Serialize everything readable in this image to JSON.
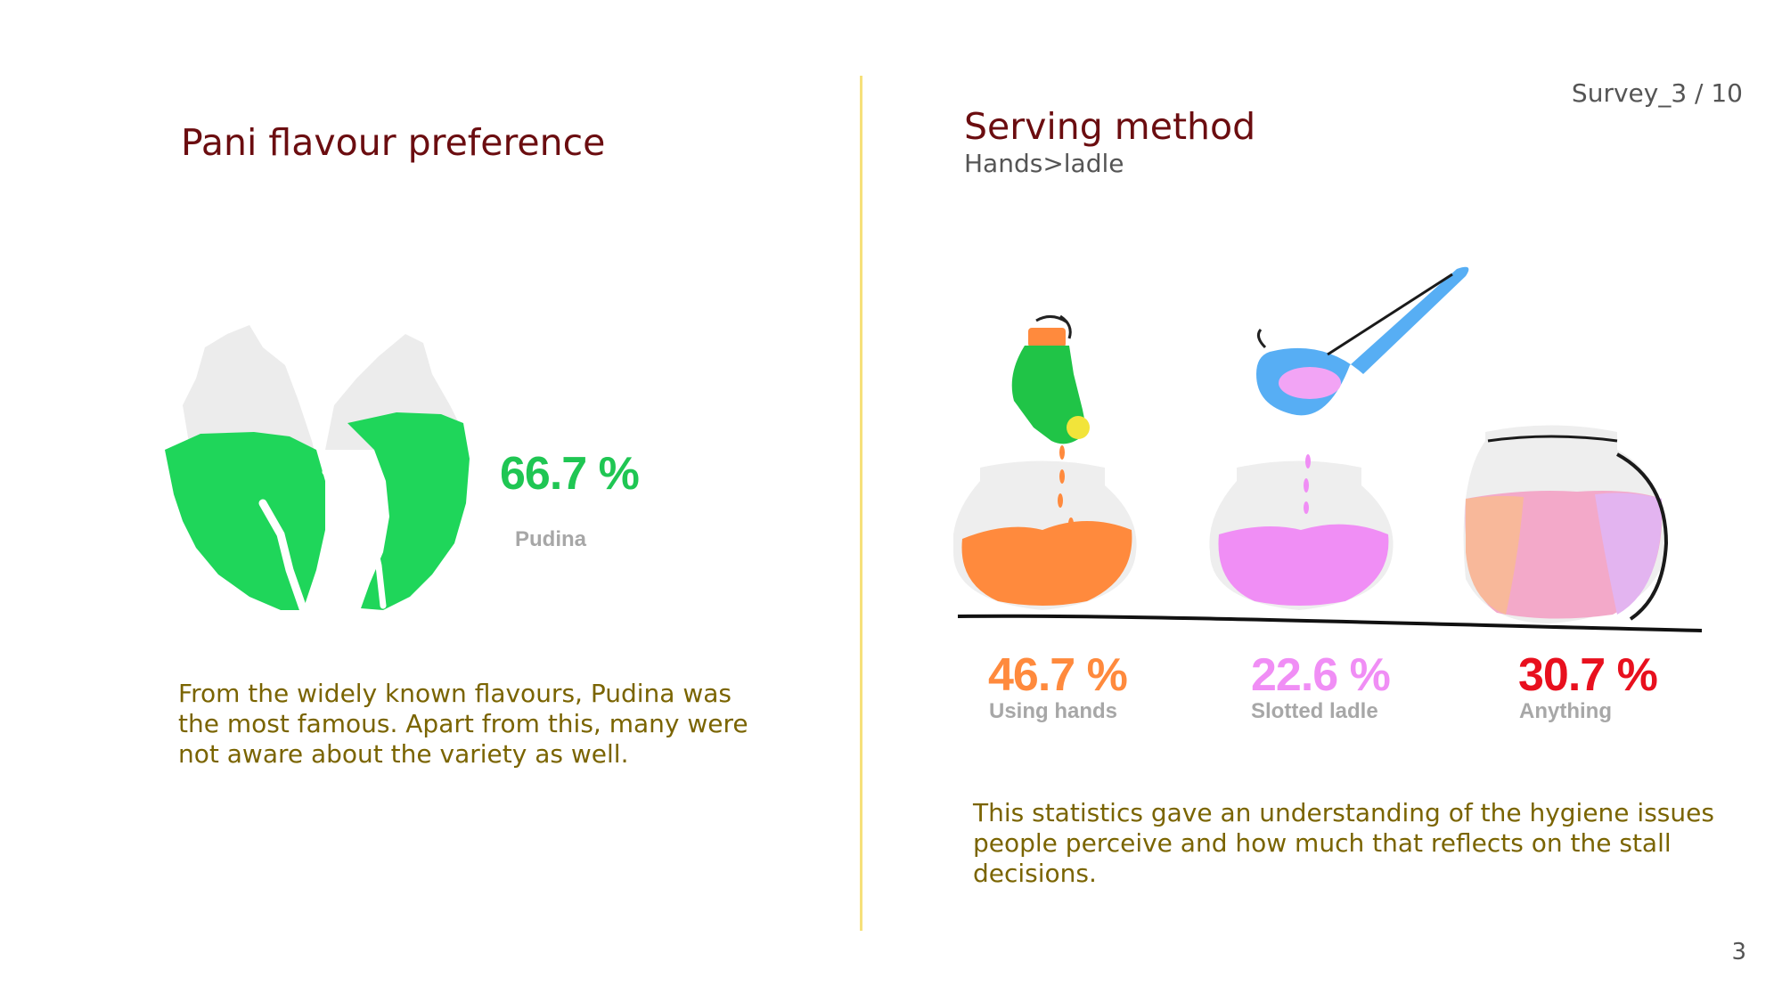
{
  "header": {
    "survey_label": "Survey_3 / 10"
  },
  "left_panel": {
    "title": "Pani flavour preference",
    "stat": {
      "value": "66.7 %",
      "label": "Pudina",
      "color": "#1fc653"
    },
    "description": "From the widely known flavours, Pudina was the most famous. Apart from this, many were not aware about the variety as well.",
    "illustration": "mint-leaves-icon"
  },
  "right_panel": {
    "title": "Serving method",
    "subtitle": "Hands>ladle",
    "stats": [
      {
        "value": "46.7 %",
        "label": "Using hands",
        "color": "#ff8a3d",
        "illustration": "hand-serving-icon"
      },
      {
        "value": "22.6 %",
        "label": "Slotted ladle",
        "color": "#f08ef5",
        "illustration": "ladle-icon"
      },
      {
        "value": "30.7 %",
        "label": "Anything",
        "color": "#e8101e",
        "illustration": "pot-icon"
      }
    ],
    "description": "This statistics gave an understanding of the hygiene issues people perceive and how much that reflects on the stall decisions."
  },
  "footer": {
    "page_number": "3"
  },
  "colors": {
    "title": "#6b0d10",
    "body": "#7a6400",
    "divider": "#f6e07a"
  }
}
